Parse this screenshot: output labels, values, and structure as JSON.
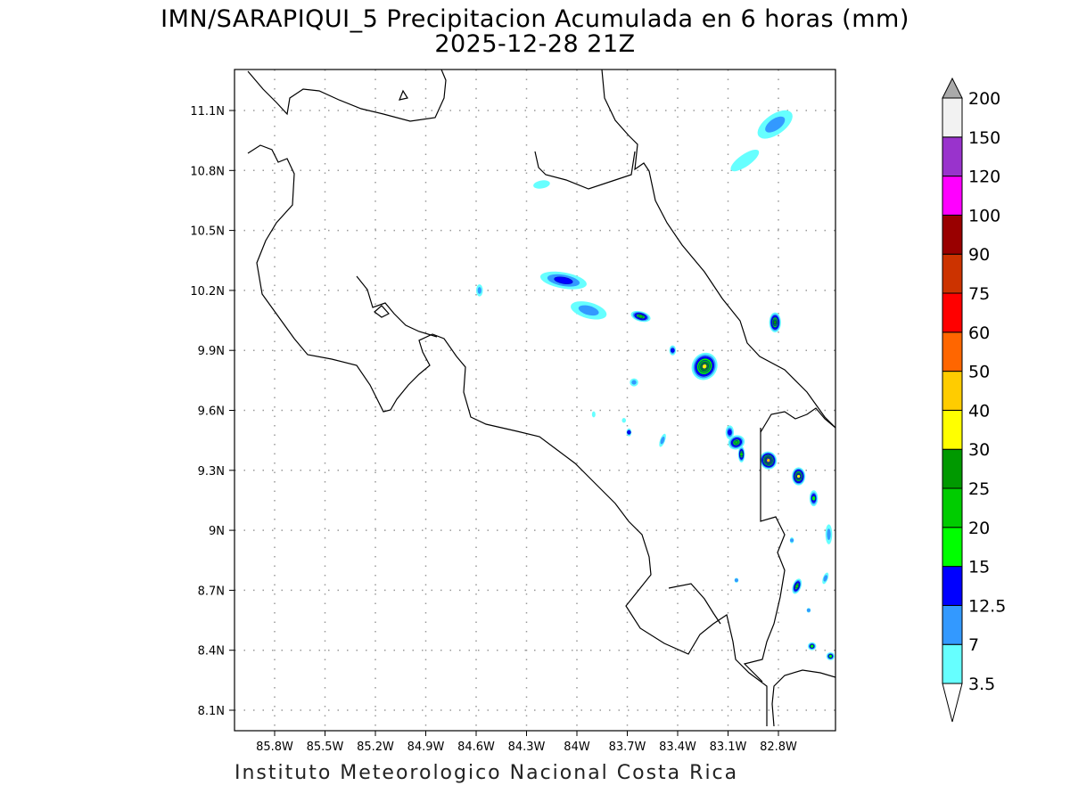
{
  "title": {
    "line1": "IMN/SARAPIQUI_5 Precipitacion Acumulada en 6 horas (mm)",
    "line2": "2025-12-28 21Z"
  },
  "footer": "Instituto Meteorologico Nacional Costa Rica",
  "chart_data": {
    "type": "heatmap",
    "title": "IMN/SARAPIQUI_5 Precipitacion Acumulada en 6 horas (mm)",
    "subtitle": "2025-12-28 21Z",
    "x_ticks": [
      "85.8W",
      "85.5W",
      "85.2W",
      "84.9W",
      "84.6W",
      "84.3W",
      "84W",
      "83.7W",
      "83.4W",
      "83.1W",
      "82.8W"
    ],
    "x_tick_values": [
      -85.8,
      -85.5,
      -85.2,
      -84.9,
      -84.6,
      -84.3,
      -84.0,
      -83.7,
      -83.4,
      -83.1,
      -82.8
    ],
    "y_ticks": [
      "11.1N",
      "10.8N",
      "10.5N",
      "10.2N",
      "9.9N",
      "9.6N",
      "9.3N",
      "9N",
      "8.7N",
      "8.4N",
      "8.1N"
    ],
    "y_tick_values": [
      11.1,
      10.8,
      10.5,
      10.2,
      9.9,
      9.6,
      9.3,
      9.0,
      8.7,
      8.4,
      8.1
    ],
    "xlim": [
      -86.0,
      -82.5
    ],
    "ylim": [
      8.0,
      11.3
    ],
    "grid": true,
    "colorbar": {
      "labels": [
        "3.5",
        "7",
        "12.5",
        "15",
        "20",
        "25",
        "30",
        "40",
        "50",
        "60",
        "75",
        "90",
        "100",
        "120",
        "150",
        "200"
      ],
      "levels": [
        3.5,
        7,
        12.5,
        15,
        20,
        25,
        30,
        40,
        50,
        60,
        75,
        90,
        100,
        120,
        150,
        200
      ],
      "colors": [
        "#66ffff",
        "#3399ff",
        "#0000ff",
        "#00ff00",
        "#00cc00",
        "#009900",
        "#ffff00",
        "#ffcc00",
        "#ff6600",
        "#ff0000",
        "#cc3300",
        "#990000",
        "#ff00ff",
        "#9933cc",
        "#f2f2f2"
      ],
      "below_color": "#ffffff",
      "above_color": "#aaaaaa",
      "placement": "right"
    },
    "cells": [
      {
        "lon": -82.82,
        "lat": 11.03,
        "max": 7,
        "rx": 0.12,
        "ry": 0.05,
        "rot": -35
      },
      {
        "lon": -83.0,
        "lat": 10.85,
        "max": 3.5,
        "rx": 0.1,
        "ry": 0.03,
        "rot": -35
      },
      {
        "lon": -84.21,
        "lat": 10.73,
        "max": 3.5,
        "rx": 0.05,
        "ry": 0.02,
        "rot": -10
      },
      {
        "lon": -84.08,
        "lat": 10.25,
        "max": 12.5,
        "rx": 0.14,
        "ry": 0.04,
        "rot": 10
      },
      {
        "lon": -84.58,
        "lat": 10.2,
        "max": 7,
        "rx": 0.02,
        "ry": 0.03,
        "rot": 0
      },
      {
        "lon": -83.93,
        "lat": 10.1,
        "max": 7,
        "rx": 0.11,
        "ry": 0.04,
        "rot": 15
      },
      {
        "lon": -83.62,
        "lat": 10.07,
        "max": 20,
        "rx": 0.06,
        "ry": 0.025,
        "rot": 15
      },
      {
        "lon": -82.82,
        "lat": 10.04,
        "max": 25,
        "rx": 0.035,
        "ry": 0.05,
        "rot": 0
      },
      {
        "lon": -83.43,
        "lat": 9.9,
        "max": 12.5,
        "rx": 0.02,
        "ry": 0.025,
        "rot": 0
      },
      {
        "lon": -83.24,
        "lat": 9.82,
        "max": 30,
        "rx": 0.075,
        "ry": 0.07,
        "rot": 30
      },
      {
        "lon": -83.66,
        "lat": 9.74,
        "max": 7,
        "rx": 0.025,
        "ry": 0.02,
        "rot": 0
      },
      {
        "lon": -83.69,
        "lat": 9.49,
        "max": 12.5,
        "rx": 0.015,
        "ry": 0.02,
        "rot": 0
      },
      {
        "lon": -83.49,
        "lat": 9.45,
        "max": 7,
        "rx": 0.015,
        "ry": 0.035,
        "rot": 20
      },
      {
        "lon": -83.09,
        "lat": 9.49,
        "max": 12.5,
        "rx": 0.025,
        "ry": 0.035,
        "rot": 0
      },
      {
        "lon": -83.05,
        "lat": 9.44,
        "max": 20,
        "rx": 0.05,
        "ry": 0.035,
        "rot": -20
      },
      {
        "lon": -83.02,
        "lat": 9.38,
        "max": 20,
        "rx": 0.02,
        "ry": 0.04,
        "rot": 0
      },
      {
        "lon": -82.86,
        "lat": 9.35,
        "max": 40,
        "rx": 0.05,
        "ry": 0.045,
        "rot": -20
      },
      {
        "lon": -82.68,
        "lat": 9.27,
        "max": 30,
        "rx": 0.04,
        "ry": 0.045,
        "rot": 0
      },
      {
        "lon": -82.59,
        "lat": 9.16,
        "max": 15,
        "rx": 0.025,
        "ry": 0.04,
        "rot": 0
      },
      {
        "lon": -82.5,
        "lat": 8.98,
        "max": 7,
        "rx": 0.02,
        "ry": 0.05,
        "rot": 0
      },
      {
        "lon": -82.69,
        "lat": 8.72,
        "max": 20,
        "rx": 0.025,
        "ry": 0.04,
        "rot": 20
      },
      {
        "lon": -82.52,
        "lat": 8.76,
        "max": 7,
        "rx": 0.015,
        "ry": 0.03,
        "rot": 20
      },
      {
        "lon": -82.6,
        "lat": 8.42,
        "max": 15,
        "rx": 0.025,
        "ry": 0.02,
        "rot": 0
      },
      {
        "lon": -82.49,
        "lat": 8.37,
        "max": 15,
        "rx": 0.025,
        "ry": 0.02,
        "rot": 0
      },
      {
        "lon": -83.05,
        "lat": 8.75,
        "max": 7,
        "rx": 0.012,
        "ry": 0.012,
        "rot": 0
      },
      {
        "lon": -83.9,
        "lat": 9.58,
        "max": 3.5,
        "rx": 0.01,
        "ry": 0.015,
        "rot": 0
      },
      {
        "lon": -82.62,
        "lat": 8.6,
        "max": 7,
        "rx": 0.012,
        "ry": 0.012,
        "rot": 0
      },
      {
        "lon": -83.72,
        "lat": 9.55,
        "max": 3.5,
        "rx": 0.012,
        "ry": 0.012,
        "rot": 0
      },
      {
        "lon": -82.72,
        "lat": 8.95,
        "max": 7,
        "rx": 0.012,
        "ry": 0.015,
        "rot": 0
      }
    ]
  }
}
